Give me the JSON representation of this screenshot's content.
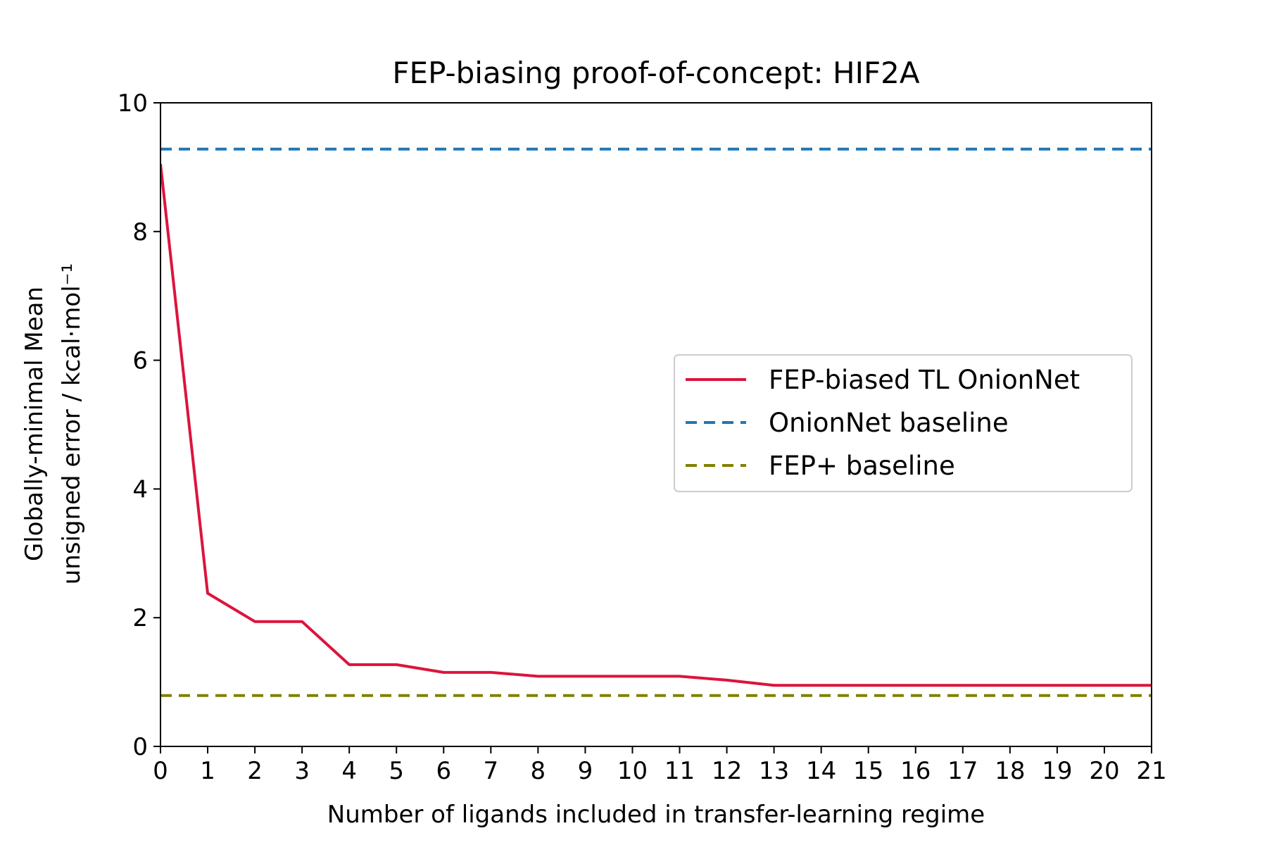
{
  "chart_data": {
    "type": "line",
    "title": "FEP-biasing proof-of-concept: HIF2A",
    "xlabel": "Number of ligands included in transfer-learning regime",
    "ylabel_line1": "Globally-minimal Mean",
    "ylabel_line2": "unsigned error / kcal·mol⁻¹",
    "xlim": [
      0,
      21
    ],
    "ylim": [
      0,
      10
    ],
    "xticks": [
      0,
      1,
      2,
      3,
      4,
      5,
      6,
      7,
      8,
      9,
      10,
      11,
      12,
      13,
      14,
      15,
      16,
      17,
      18,
      19,
      20,
      21
    ],
    "yticks": [
      0,
      2,
      4,
      6,
      8,
      10
    ],
    "grid": false,
    "legend_position": "center-right",
    "series": [
      {
        "name": "FEP-biased TL OnionNet",
        "style": "solid",
        "color": "#dc143c",
        "x": [
          0,
          1,
          2,
          3,
          4,
          5,
          6,
          7,
          8,
          9,
          10,
          11,
          12,
          13,
          14,
          15,
          16,
          17,
          18,
          19,
          20,
          21
        ],
        "values": [
          9.05,
          2.38,
          1.94,
          1.94,
          1.27,
          1.27,
          1.15,
          1.15,
          1.09,
          1.09,
          1.09,
          1.09,
          1.03,
          0.95,
          0.95,
          0.95,
          0.95,
          0.95,
          0.95,
          0.95,
          0.95,
          0.95
        ]
      },
      {
        "name": "OnionNet baseline",
        "style": "dashed",
        "color": "#1f77b4",
        "x": [
          0,
          21
        ],
        "values": [
          9.28,
          9.28
        ]
      },
      {
        "name": "FEP+ baseline",
        "style": "dashed",
        "color": "#808000",
        "x": [
          0,
          21
        ],
        "values": [
          0.79,
          0.79
        ]
      }
    ]
  }
}
